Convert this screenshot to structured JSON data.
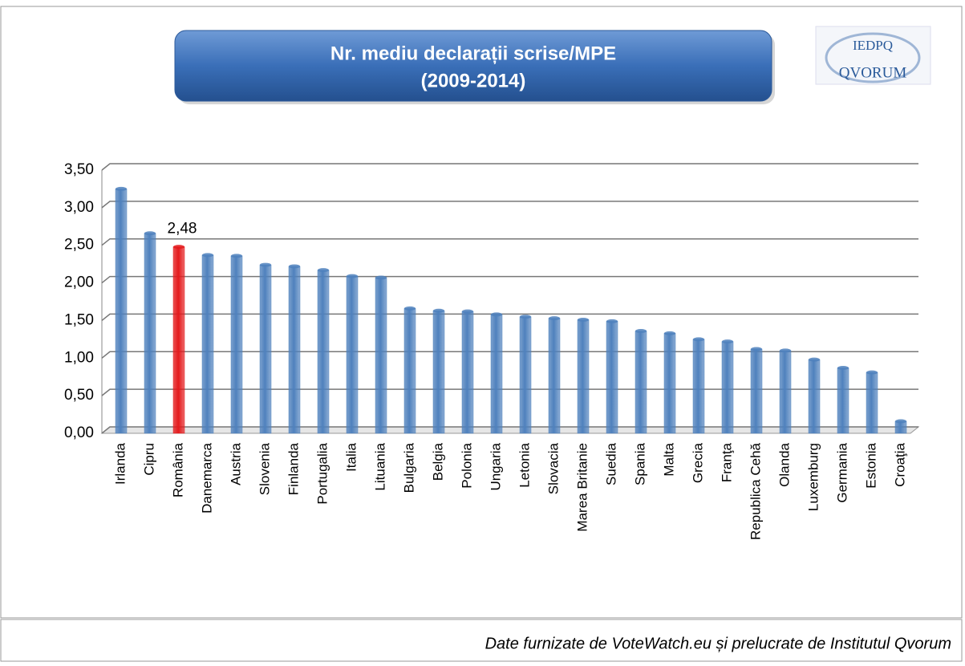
{
  "chart_data": {
    "type": "bar",
    "title": [
      "Nr. mediu declarații scrise/MPE",
      "(2009-2014)"
    ],
    "logo": [
      "IEDPQ",
      "QVORUM"
    ],
    "footer": "Date furnizate de VoteWatch.eu și prelucrate de Institutul Qvorum",
    "categories": [
      "Irlanda",
      "Cipru",
      "România",
      "Danemarca",
      "Austria",
      "Slovenia",
      "Finlanda",
      "Portugalia",
      "Italia",
      "Lituania",
      "Bulgaria",
      "Belgia",
      "Polonia",
      "Ungaria",
      "Letonia",
      "Slovacia",
      "Marea Britanie",
      "Suedia",
      "Spania",
      "Malta",
      "Grecia",
      "Franţa",
      "Republica Cehă",
      "Olanda",
      "Luxemburg",
      "Germania",
      "Estonia",
      "Croaţia"
    ],
    "values": [
      3.25,
      2.66,
      2.48,
      2.37,
      2.36,
      2.24,
      2.22,
      2.17,
      2.09,
      2.07,
      1.66,
      1.63,
      1.62,
      1.58,
      1.55,
      1.53,
      1.51,
      1.49,
      1.36,
      1.33,
      1.25,
      1.22,
      1.12,
      1.1,
      0.98,
      0.87,
      0.81,
      0.16
    ],
    "value_labels": [
      null,
      null,
      "2,48",
      null,
      null,
      null,
      null,
      null,
      null,
      null,
      null,
      null,
      null,
      null,
      null,
      null,
      null,
      null,
      null,
      null,
      null,
      null,
      null,
      null,
      null,
      null,
      null,
      null
    ],
    "colors": [
      "#4f81bd",
      "#4f81bd",
      "#e41a1c",
      "#4f81bd",
      "#4f81bd",
      "#4f81bd",
      "#4f81bd",
      "#4f81bd",
      "#4f81bd",
      "#4f81bd",
      "#4f81bd",
      "#4f81bd",
      "#4f81bd",
      "#4f81bd",
      "#4f81bd",
      "#4f81bd",
      "#4f81bd",
      "#4f81bd",
      "#4f81bd",
      "#4f81bd",
      "#4f81bd",
      "#4f81bd",
      "#4f81bd",
      "#4f81bd",
      "#4f81bd",
      "#4f81bd",
      "#4f81bd",
      "#4f81bd"
    ],
    "ylim": [
      0,
      3.5
    ],
    "yticks": [
      {
        "value": 0,
        "label": "0,00"
      },
      {
        "value": 0.5,
        "label": "0,50"
      },
      {
        "value": 1,
        "label": "1,00"
      },
      {
        "value": 1.5,
        "label": "1,50"
      },
      {
        "value": 2,
        "label": "2,00"
      },
      {
        "value": 2.5,
        "label": "2,50"
      },
      {
        "value": 3,
        "label": "3,00"
      },
      {
        "value": 3.5,
        "label": "3,50"
      }
    ],
    "grid": true
  }
}
